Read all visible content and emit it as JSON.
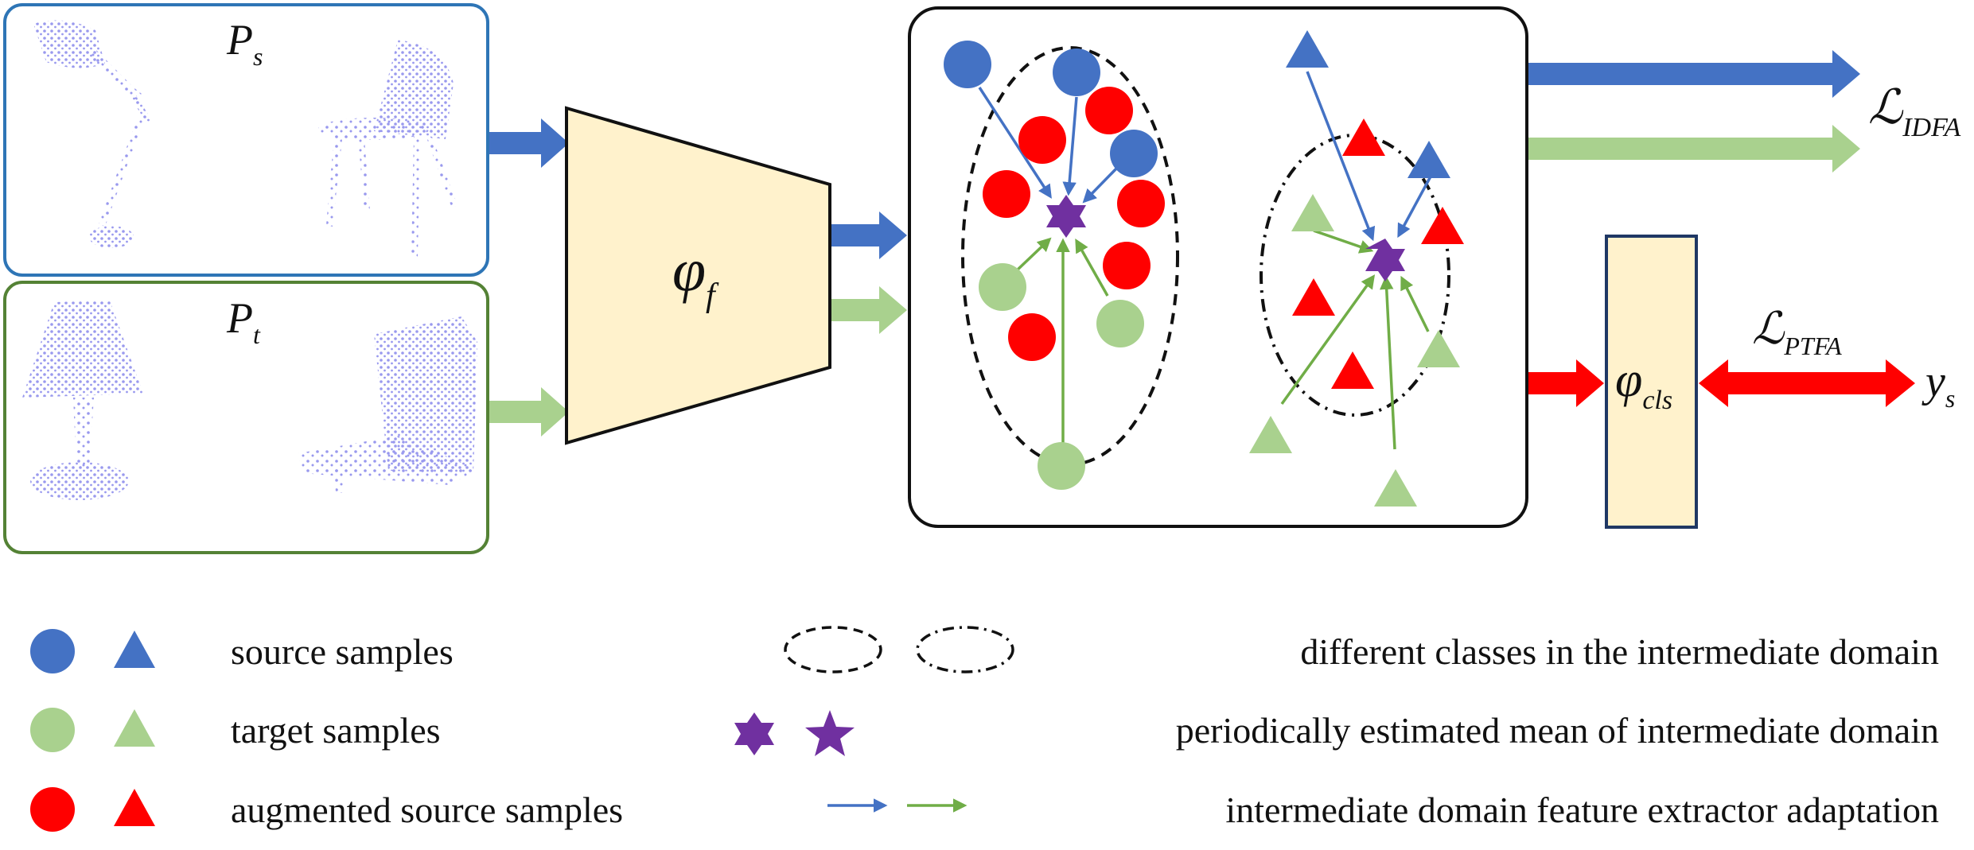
{
  "inputs": {
    "source_label": "P",
    "source_sub": "s",
    "target_label": "P",
    "target_sub": "t"
  },
  "modules": {
    "feature_extractor_symbol": "φ",
    "feature_extractor_sub": "f",
    "classifier_symbol": "φ",
    "classifier_sub": "cls"
  },
  "losses": {
    "idfa_symbol": "ℒ",
    "idfa_sub": "IDFA",
    "ptfa_symbol": "ℒ",
    "ptfa_sub": "PTFA",
    "label_symbol": "y",
    "label_sub": "s"
  },
  "legend": {
    "source": "source samples",
    "target": "target samples",
    "augmented": "augmented source samples",
    "classes": "different classes in the intermediate domain",
    "mean": "periodically estimated mean of intermediate domain",
    "adaptation": "intermediate domain feature extractor adaptation"
  },
  "colors": {
    "source_blue": "#4472C4",
    "target_green": "#A9D18E",
    "augmented_red": "#FF0000",
    "mean_purple": "#7030A0",
    "module_fill": "#FFF2CC",
    "source_frame": "#2E75B6",
    "target_frame": "#548235",
    "cloud": "#9999EE"
  }
}
